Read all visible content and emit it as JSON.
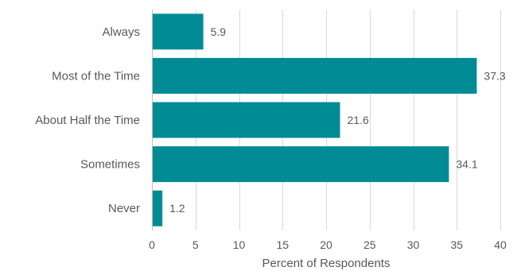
{
  "chart_data": {
    "type": "bar",
    "orientation": "horizontal",
    "categories": [
      "Always",
      "Most of the Time",
      "About Half the Time",
      "Sometimes",
      "Never"
    ],
    "values": [
      5.9,
      37.3,
      21.6,
      34.1,
      1.2
    ],
    "data_labels": [
      "5.9",
      "37.3",
      "21.6",
      "34.1",
      "1.2"
    ],
    "title": "",
    "xlabel": "Percent of Respondents",
    "ylabel": "",
    "xlim": [
      0,
      40
    ],
    "xticks": [
      0,
      5,
      10,
      15,
      20,
      25,
      30,
      35,
      40
    ],
    "grid": "vertical",
    "legend": "none",
    "bar_color": "#008B95"
  }
}
